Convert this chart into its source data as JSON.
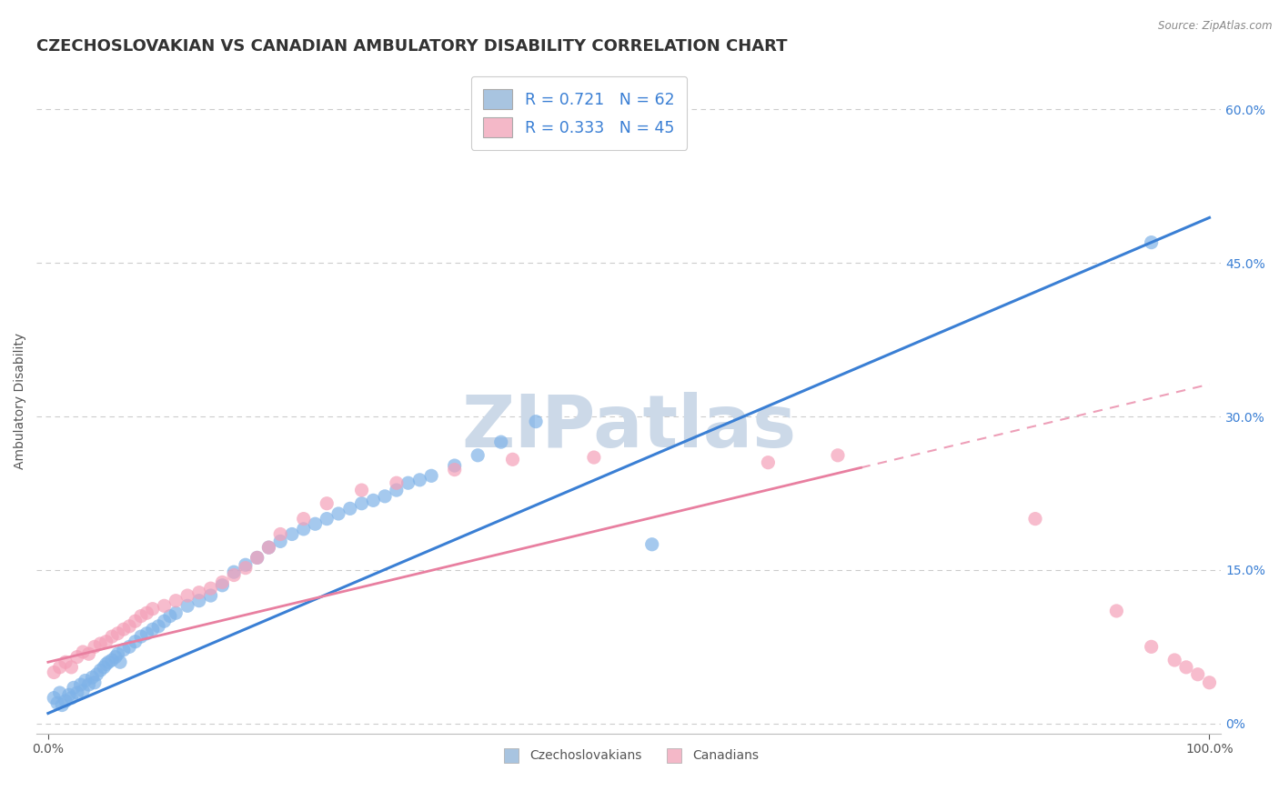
{
  "title": "CZECHOSLOVAKIAN VS CANADIAN AMBULATORY DISABILITY CORRELATION CHART",
  "source": "Source: ZipAtlas.com",
  "ylabel": "Ambulatory Disability",
  "y_tick_labels_right": [
    "0%",
    "15.0%",
    "30.0%",
    "45.0%",
    "60.0%"
  ],
  "y_ticks_right": [
    0.0,
    0.15,
    0.3,
    0.45,
    0.6
  ],
  "czecho_color": "#7fb3e8",
  "canadian_color": "#f4a0b8",
  "czecho_line_color": "#3a7fd4",
  "canadian_line_color": "#e87fa0",
  "background_color": "#ffffff",
  "watermark_color": "#ccd9e8",
  "watermark_text": "ZIPatlas",
  "legend_czechs": "Czechoslovakians",
  "legend_canadians": "Canadians",
  "legend_item1": "R = 0.721   N = 62",
  "legend_item2": "R = 0.333   N = 45",
  "legend_color1": "#a8c4e0",
  "legend_color2": "#f4b8c8",
  "czecho_scatter_x": [
    0.5,
    0.8,
    1.0,
    1.2,
    1.5,
    1.8,
    2.0,
    2.2,
    2.5,
    2.8,
    3.0,
    3.2,
    3.5,
    3.8,
    4.0,
    4.2,
    4.5,
    4.8,
    5.0,
    5.2,
    5.5,
    5.8,
    6.0,
    6.2,
    6.5,
    7.0,
    7.5,
    8.0,
    8.5,
    9.0,
    9.5,
    10.0,
    10.5,
    11.0,
    12.0,
    13.0,
    14.0,
    15.0,
    16.0,
    17.0,
    18.0,
    19.0,
    20.0,
    21.0,
    22.0,
    23.0,
    24.0,
    25.0,
    26.0,
    27.0,
    28.0,
    29.0,
    30.0,
    31.0,
    32.0,
    33.0,
    35.0,
    37.0,
    39.0,
    42.0,
    52.0,
    95.0
  ],
  "czecho_scatter_y": [
    0.025,
    0.02,
    0.03,
    0.018,
    0.022,
    0.028,
    0.025,
    0.035,
    0.03,
    0.038,
    0.032,
    0.042,
    0.038,
    0.045,
    0.04,
    0.048,
    0.052,
    0.055,
    0.058,
    0.06,
    0.062,
    0.065,
    0.068,
    0.06,
    0.072,
    0.075,
    0.08,
    0.085,
    0.088,
    0.092,
    0.095,
    0.1,
    0.105,
    0.108,
    0.115,
    0.12,
    0.125,
    0.135,
    0.148,
    0.155,
    0.162,
    0.172,
    0.178,
    0.185,
    0.19,
    0.195,
    0.2,
    0.205,
    0.21,
    0.215,
    0.218,
    0.222,
    0.228,
    0.235,
    0.238,
    0.242,
    0.252,
    0.262,
    0.275,
    0.295,
    0.175,
    0.47
  ],
  "canadian_scatter_x": [
    0.5,
    1.0,
    1.5,
    2.0,
    2.5,
    3.0,
    3.5,
    4.0,
    4.5,
    5.0,
    5.5,
    6.0,
    6.5,
    7.0,
    7.5,
    8.0,
    8.5,
    9.0,
    10.0,
    11.0,
    12.0,
    13.0,
    14.0,
    15.0,
    16.0,
    17.0,
    18.0,
    19.0,
    20.0,
    22.0,
    24.0,
    27.0,
    30.0,
    35.0,
    40.0,
    47.0,
    62.0,
    68.0,
    85.0,
    92.0,
    95.0,
    97.0,
    98.0,
    99.0,
    100.0
  ],
  "canadian_scatter_y": [
    0.05,
    0.055,
    0.06,
    0.055,
    0.065,
    0.07,
    0.068,
    0.075,
    0.078,
    0.08,
    0.085,
    0.088,
    0.092,
    0.095,
    0.1,
    0.105,
    0.108,
    0.112,
    0.115,
    0.12,
    0.125,
    0.128,
    0.132,
    0.138,
    0.145,
    0.152,
    0.162,
    0.172,
    0.185,
    0.2,
    0.215,
    0.228,
    0.235,
    0.248,
    0.258,
    0.26,
    0.255,
    0.262,
    0.2,
    0.11,
    0.075,
    0.062,
    0.055,
    0.048,
    0.04
  ],
  "title_fontsize": 13,
  "axis_label_fontsize": 10,
  "tick_fontsize": 10
}
